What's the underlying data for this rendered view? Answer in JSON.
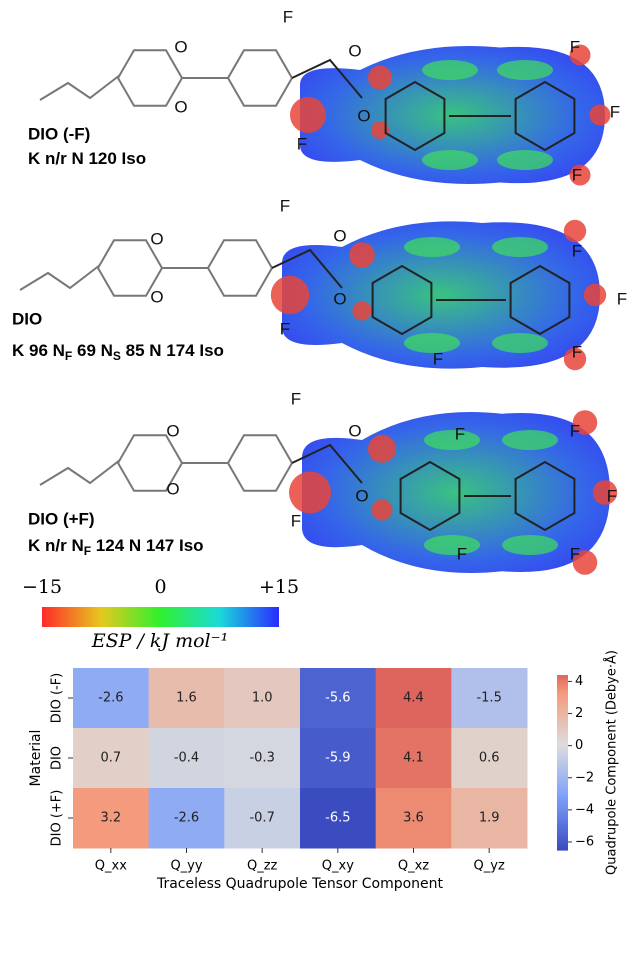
{
  "molecules": [
    {
      "name": "DIO (-F)",
      "phases": [
        {
          "text": "K n/r N 120 Iso"
        }
      ],
      "atoms": [
        "O",
        "O",
        "F",
        "F",
        "O",
        "O",
        "F",
        "F",
        "F"
      ]
    },
    {
      "name": "DIO",
      "phases": [
        {
          "text": "K 96 N"
        },
        {
          "text": "F",
          "sub": true
        },
        {
          "text": " 69 N"
        },
        {
          "text": "S",
          "sub": true
        },
        {
          "text": " 85  N 174 Iso"
        }
      ],
      "atoms": [
        "O",
        "O",
        "F",
        "F",
        "O",
        "O",
        "F",
        "F",
        "F",
        "F"
      ]
    },
    {
      "name": "DIO (+F)",
      "phases": [
        {
          "text": "K n/r N"
        },
        {
          "text": "F",
          "sub": true
        },
        {
          "text": " 124 N 147 Iso"
        }
      ],
      "atoms": [
        "O",
        "O",
        "F",
        "F",
        "O",
        "O",
        "F",
        "F",
        "F",
        "F",
        "F"
      ]
    }
  ],
  "esp_colorbar": {
    "label": "ESP / kJ mol⁻¹",
    "lim": [
      -15,
      15
    ],
    "ticks": [
      {
        "value": -15,
        "label": "−15"
      },
      0,
      {
        "value": 15,
        "label": "+15"
      }
    ]
  },
  "chart_data": {
    "type": "heatmap",
    "x_categories": [
      "Q_xx",
      "Q_yy",
      "Q_zz",
      "Q_xy",
      "Q_xz",
      "Q_yz"
    ],
    "y_categories": [
      "DIO (-F)",
      "DIO",
      "DIO (+F)"
    ],
    "xlabel": "Traceless Quadrupole Tensor Component",
    "ylabel": "Material",
    "values": [
      [
        -2.6,
        1.6,
        1.0,
        -5.6,
        4.4,
        -1.5
      ],
      [
        0.7,
        -0.4,
        -0.3,
        -5.9,
        4.1,
        0.6
      ],
      [
        3.2,
        -2.6,
        -0.7,
        -6.5,
        3.6,
        1.9
      ]
    ],
    "value_labels": [
      [
        "-2.6",
        "1.6",
        "1.0",
        "-5.6",
        "4.4",
        "-1.5"
      ],
      [
        "0.7",
        "-0.4",
        "-0.3",
        "-5.9",
        "4.1",
        "0.6"
      ],
      [
        "3.2",
        "-2.6",
        "-0.7",
        "-6.5",
        "3.6",
        "1.9"
      ]
    ],
    "colormap": "coolwarm",
    "center": 0,
    "vlim": [
      -6.5,
      4.4
    ],
    "colorbar_label": "Quadrupole Component (Debye·Å)",
    "colorbar_ticks": [
      {
        "value": -6,
        "label": "−6"
      },
      {
        "value": -4,
        "label": "−4"
      },
      {
        "value": -2,
        "label": "−2"
      },
      0,
      2,
      4
    ]
  }
}
